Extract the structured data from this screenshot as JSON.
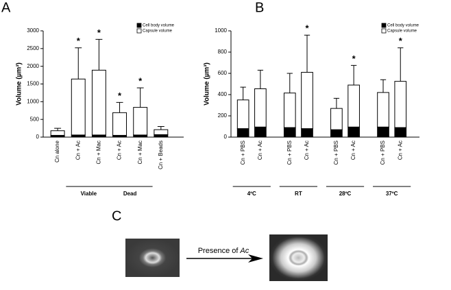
{
  "chart_data": [
    {
      "type": "stacked_bar",
      "panel_label": "A",
      "y_label": "Volume (µm³)",
      "categories": [
        "Cn alone",
        "Cn + Ac",
        "Cn + Mac",
        "Cn + Ac",
        "Cn + Mac",
        "Cn + Beads"
      ],
      "groups": [
        {
          "label": "Viable",
          "categories": [
            1,
            2
          ]
        },
        {
          "label": "Dead",
          "categories": [
            3,
            4
          ]
        }
      ],
      "series": [
        {
          "name": "Cell body volume",
          "color": "#000000",
          "values": [
            50,
            60,
            60,
            50,
            60,
            70
          ],
          "errors": [
            30,
            40,
            40,
            30,
            40,
            30
          ]
        },
        {
          "name": "Capsule volume",
          "color": "#ffffff",
          "values": [
            130,
            1580,
            1830,
            640,
            780,
            140
          ],
          "errors": [
            70,
            880,
            870,
            290,
            550,
            90
          ]
        }
      ],
      "annotations": [
        {
          "index": 1,
          "text": "*"
        },
        {
          "index": 2,
          "text": "*"
        },
        {
          "index": 3,
          "text": "*"
        },
        {
          "index": 4,
          "text": "*"
        }
      ],
      "ylim": [
        0,
        3000
      ],
      "yticks": [
        0,
        500,
        1000,
        1500,
        2000,
        2500,
        3000
      ],
      "legend": "top-right"
    },
    {
      "type": "stacked_bar",
      "panel_label": "B",
      "y_label": "Volume (µm³)",
      "categories": [
        "Cn + PBS",
        "Cn + Ac",
        "Cn + PBS",
        "Cn + Ac",
        "Cn + PBS",
        "Cn + Ac",
        "Cn + PBS",
        "Cn + Ac"
      ],
      "groups": [
        {
          "label": "4ºC",
          "categories": [
            0,
            1
          ]
        },
        {
          "label": "RT",
          "categories": [
            2,
            3
          ]
        },
        {
          "label": "28ºC",
          "categories": [
            4,
            5
          ]
        },
        {
          "label": "37ºC",
          "categories": [
            6,
            7
          ]
        }
      ],
      "series": [
        {
          "name": "Cell body volume",
          "color": "#000000",
          "values": [
            80,
            95,
            90,
            80,
            70,
            95,
            95,
            90
          ],
          "errors": [
            20,
            25,
            25,
            25,
            20,
            20,
            20,
            20
          ]
        },
        {
          "name": "Capsule volume",
          "color": "#ffffff",
          "values": [
            270,
            360,
            325,
            530,
            200,
            395,
            325,
            435
          ],
          "errors": [
            120,
            175,
            185,
            350,
            95,
            185,
            120,
            315
          ]
        }
      ],
      "annotations": [
        {
          "index": 3,
          "text": "*"
        },
        {
          "index": 5,
          "text": "*"
        },
        {
          "index": 7,
          "text": "*"
        }
      ],
      "ylim": [
        0,
        1000
      ],
      "yticks": [
        0,
        200,
        400,
        600,
        800,
        1000
      ],
      "legend": "top-right"
    }
  ],
  "panel_c": {
    "label": "C",
    "caption": "Presence of",
    "caption_italic": "Ac"
  }
}
